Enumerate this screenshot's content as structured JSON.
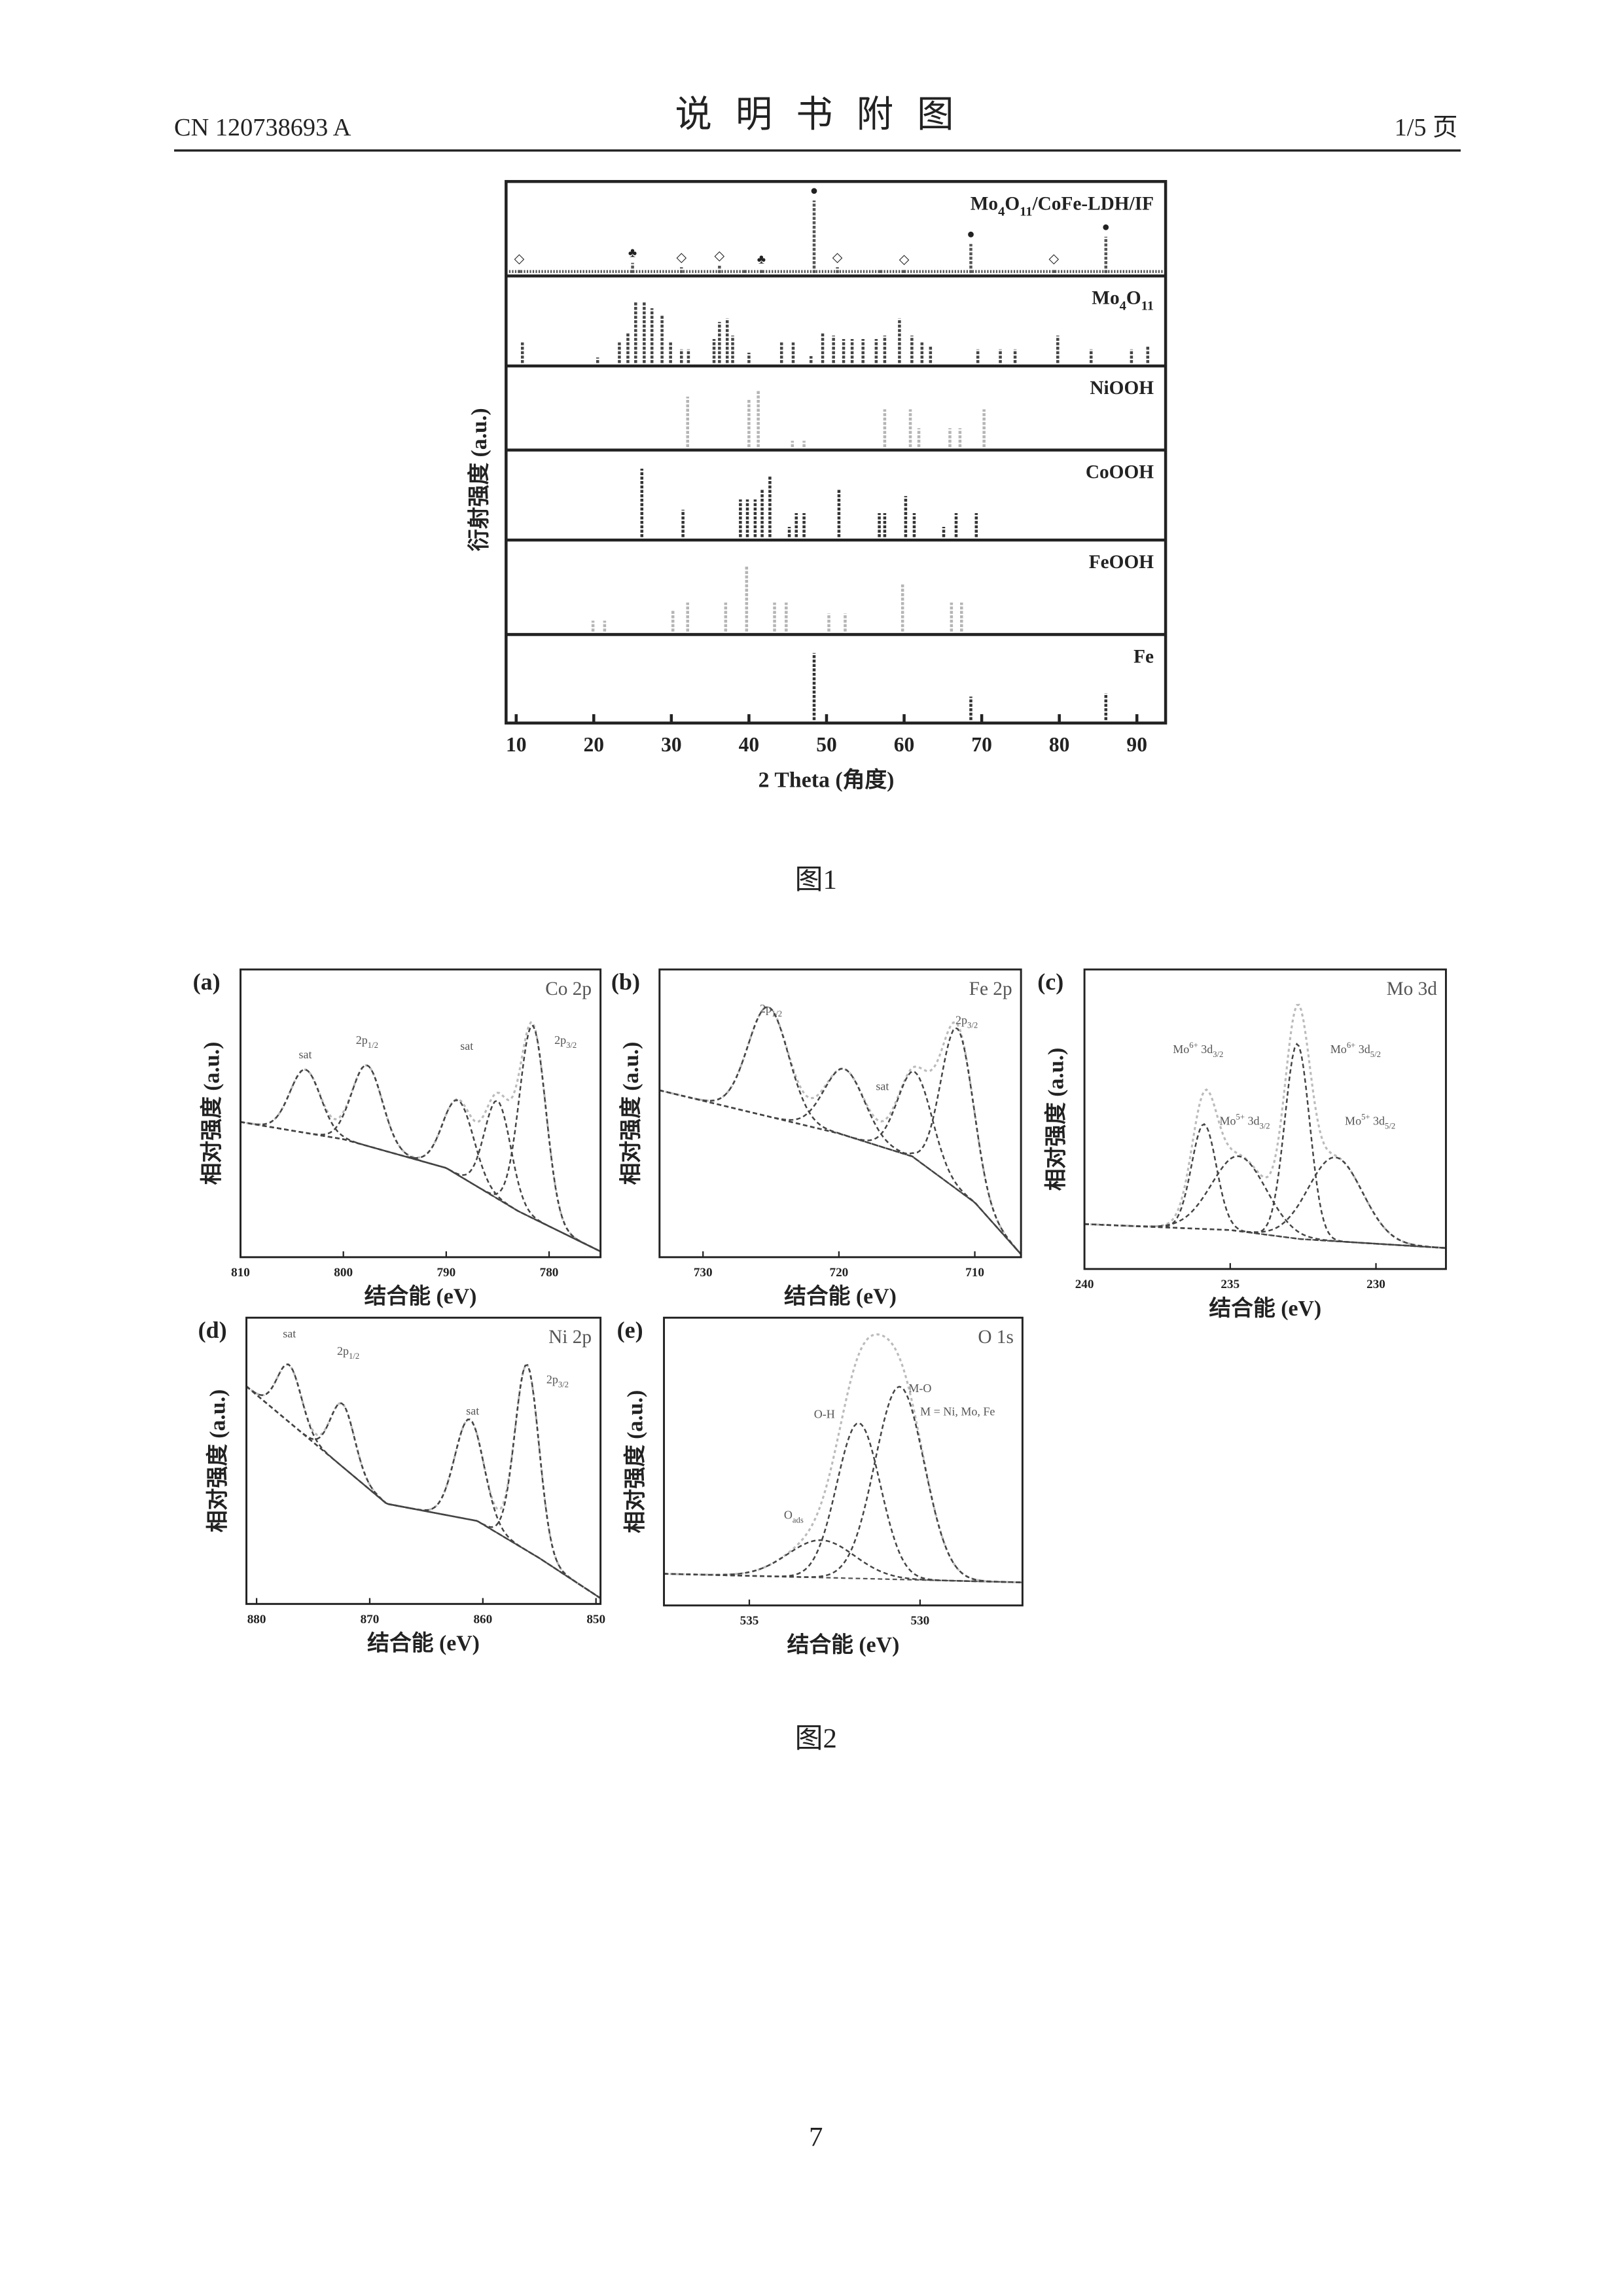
{
  "header": {
    "doc_number": "CN 120738693 A",
    "title": "说明书附图",
    "page_of": "1/5 页"
  },
  "page_number": "7",
  "figures": [
    {
      "caption": "图1",
      "chart_data": {
        "type": "stick",
        "x_label": "2 Theta (角度)",
        "y_label": "衍射强度 (a.u.)",
        "xlim": [
          8.7,
          93.7
        ],
        "xticks": [
          10,
          20,
          30,
          40,
          50,
          60,
          70,
          80,
          90
        ],
        "ylim": [
          0,
          110
        ],
        "series": [
          {
            "name": "Mo4O11/CoFe-LDH/IF",
            "color": "#555555",
            "x": [
              10.4,
              25.0,
              31.3,
              36.2,
              39.5,
              41.6,
              48.4,
              51.4,
              57.0,
              60.0,
              68.6,
              79.3,
              86.0
            ],
            "values": [
              6,
              14,
              8,
              10,
              5,
              5,
              100,
              8,
              4,
              5,
              40,
              6,
              50
            ],
            "markers": [
              {
                "x": 10.4,
                "symbol": "◇"
              },
              {
                "x": 25.0,
                "symbol": "♣"
              },
              {
                "x": 31.3,
                "symbol": "◇"
              },
              {
                "x": 36.2,
                "symbol": "◇"
              },
              {
                "x": 41.6,
                "symbol": "♣"
              },
              {
                "x": 48.4,
                "symbol": "●"
              },
              {
                "x": 51.4,
                "symbol": "◇"
              },
              {
                "x": 60.0,
                "symbol": "◇"
              },
              {
                "x": 68.6,
                "symbol": "●"
              },
              {
                "x": 79.3,
                "symbol": "◇"
              },
              {
                "x": 86.0,
                "symbol": "●"
              }
            ]
          },
          {
            "name": "Mo4O11",
            "color": "#444444",
            "x": [
              10.8,
              20.5,
              23.3,
              24.4,
              25.4,
              26.5,
              27.5,
              28.8,
              29.9,
              31.3,
              32.2,
              35.5,
              36.2,
              37.2,
              37.9,
              40.0,
              44.2,
              45.7,
              48.0,
              49.5,
              50.9,
              52.2,
              53.3,
              54.7,
              56.4,
              57.5,
              59.4,
              61.0,
              62.3,
              63.4,
              69.5,
              72.4,
              74.3,
              79.8,
              84.1,
              89.3,
              91.4
            ],
            "values": [
              30,
              8,
              30,
              45,
              90,
              90,
              80,
              70,
              30,
              20,
              20,
              35,
              60,
              65,
              40,
              15,
              30,
              30,
              10,
              45,
              40,
              35,
              35,
              35,
              35,
              40,
              65,
              40,
              30,
              25,
              20,
              20,
              20,
              40,
              20,
              20,
              25
            ]
          },
          {
            "name": "NiOOH",
            "color": "#b5b5b5",
            "x": [
              32.1,
              40.0,
              41.2,
              45.6,
              47.1,
              57.5,
              60.8,
              61.9,
              65.9,
              67.2,
              70.3
            ],
            "values": [
              80,
              75,
              90,
              10,
              10,
              60,
              60,
              30,
              30,
              30,
              60
            ]
          },
          {
            "name": "CoOOH",
            "color": "#333333",
            "x": [
              26.2,
              31.5,
              38.9,
              39.8,
              40.8,
              41.7,
              42.7,
              45.2,
              46.1,
              47.1,
              51.6,
              56.8,
              57.5,
              60.2,
              61.3,
              65.1,
              66.7,
              69.3
            ],
            "values": [
              100,
              40,
              55,
              55,
              55,
              70,
              90,
              15,
              35,
              35,
              70,
              35,
              35,
              60,
              35,
              15,
              35,
              35
            ]
          },
          {
            "name": "FeOOH",
            "color": "#b5b5b5",
            "x": [
              19.9,
              21.4,
              30.2,
              32.1,
              37.0,
              39.7,
              43.3,
              44.8,
              50.3,
              52.4,
              59.8,
              66.1,
              67.4
            ],
            "values": [
              15,
              15,
              30,
              40,
              40,
              90,
              40,
              40,
              25,
              25,
              65,
              40,
              40
            ]
          },
          {
            "name": "Fe",
            "color": "#333333",
            "x": [
              48.4,
              68.6,
              86.0
            ],
            "values": [
              100,
              35,
              40
            ]
          }
        ]
      }
    },
    {
      "caption": "图2",
      "chart_data": [
        {
          "type": "xps",
          "panel": "(a)",
          "title": "Co 2p",
          "x_label": "结合能 (eV)",
          "y_label": "相对强度 (a.u.)",
          "xlim": [
            810,
            775
          ],
          "xticks": [
            810,
            800,
            790,
            780
          ],
          "ylim": [
            0,
            100
          ],
          "background": {
            "x": [
              810,
              800,
              790,
              783,
              775
            ],
            "values": [
              47,
              41,
              31,
              16,
              2
            ]
          },
          "components": [
            {
              "center": 803.7,
              "height": 22,
              "fwhm": 3.5
            },
            {
              "center": 797.7,
              "height": 28,
              "fwhm": 3.5
            },
            {
              "center": 788.8,
              "height": 26,
              "fwhm": 3.5
            },
            {
              "center": 785.0,
              "height": 34,
              "fwhm": 3
            },
            {
              "center": 781.6,
              "height": 67,
              "fwhm": 3
            }
          ],
          "annotations": [
            {
              "text": "sat",
              "x": 803.7,
              "y": 70
            },
            {
              "text": "2p1/2",
              "x": 797.7,
              "y": 75
            },
            {
              "text": "sat",
              "x": 788.0,
              "y": 73
            },
            {
              "text": "2p3/2",
              "x": 778.4,
              "y": 75
            }
          ]
        },
        {
          "type": "xps",
          "panel": "(b)",
          "title": "Fe 2p",
          "x_label": "结合能 (eV)",
          "y_label": "相对强度 (a.u.)",
          "xlim": [
            733.2,
            706.6
          ],
          "xticks": [
            730,
            720,
            710
          ],
          "ylim": [
            0,
            100
          ],
          "background": {
            "x": [
              733.2,
              720,
              714.6,
              710,
              706.6
            ],
            "values": [
              58,
              43,
              35,
              19,
              1
            ]
          },
          "components": [
            {
              "center": 725.2,
              "height": 38,
              "fwhm": 3.5
            },
            {
              "center": 719.6,
              "height": 23,
              "fwhm": 3.5
            },
            {
              "center": 714.4,
              "height": 30,
              "fwhm": 3
            },
            {
              "center": 711.3,
              "height": 56,
              "fwhm": 2.8
            }
          ],
          "annotations": [
            {
              "text": "2p1/2",
              "x": 725.0,
              "y": 86
            },
            {
              "text": "sat",
              "x": 716.8,
              "y": 59
            },
            {
              "text": "2p3/2",
              "x": 710.6,
              "y": 82
            }
          ]
        },
        {
          "type": "xps",
          "panel": "(c)",
          "title": "Mo 3d",
          "x_label": "结合能 (eV)",
          "y_label": "相对强度 (a.u.)",
          "xlim": [
            240,
            227.6
          ],
          "xticks": [
            240,
            235,
            230
          ],
          "ylim": [
            0,
            100
          ],
          "background": {
            "x": [
              240,
              235,
              232.6,
              227.6
            ],
            "values": [
              15,
              13,
              10,
              7
            ]
          },
          "components": [
            {
              "center": 235.9,
              "height": 35,
              "fwhm": 1.0
            },
            {
              "center": 234.7,
              "height": 25,
              "fwhm": 2.2
            },
            {
              "center": 232.7,
              "height": 65,
              "fwhm": 1.0
            },
            {
              "center": 231.4,
              "height": 28,
              "fwhm": 2.2
            }
          ],
          "annotations": [
            {
              "text": "Mo6+ 3d3/2",
              "x": 236.1,
              "y": 73
            },
            {
              "text": "Mo5+ 3d3/2",
              "x": 234.5,
              "y": 49
            },
            {
              "text": "Mo6+ 3d5/2",
              "x": 230.7,
              "y": 73
            },
            {
              "text": "Mo5+ 3d5/2",
              "x": 230.2,
              "y": 49
            }
          ]
        },
        {
          "type": "xps",
          "panel": "(d)",
          "title": "Ni 2p",
          "x_label": "结合能 (eV)",
          "y_label": "相对强度 (a.u.)",
          "xlim": [
            880.9,
            849.6
          ],
          "xticks": [
            880,
            870,
            860,
            850
          ],
          "ylim": [
            0,
            100
          ],
          "background": {
            "x": [
              880.9,
              868.5,
              860.5,
              855,
              849.6
            ],
            "values": [
              76,
              35,
              29,
              16,
              2
            ]
          },
          "components": [
            {
              "center": 877.1,
              "height": 20,
              "fwhm": 2.5
            },
            {
              "center": 872.4,
              "height": 22,
              "fwhm": 2.5
            },
            {
              "center": 861.2,
              "height": 35,
              "fwhm": 3
            },
            {
              "center": 856.1,
              "height": 65,
              "fwhm": 2.5
            }
          ],
          "annotations": [
            {
              "text": "sat",
              "x": 877.1,
              "y": 94
            },
            {
              "text": "2p1/2",
              "x": 871.9,
              "y": 88
            },
            {
              "text": "sat",
              "x": 860.9,
              "y": 67
            },
            {
              "text": "2p3/2",
              "x": 853.4,
              "y": 78
            }
          ]
        },
        {
          "type": "xps",
          "panel": "(e)",
          "title": "O 1s",
          "x_label": "结合能 (eV)",
          "y_label": "相对强度 (a.u.)",
          "xlim": [
            537.5,
            527.0
          ],
          "xticks": [
            535,
            530
          ],
          "ylim": [
            0,
            100
          ],
          "background": {
            "x": [
              537.5,
              527.0
            ],
            "values": [
              11,
              8
            ]
          },
          "components": [
            {
              "center": 532.9,
              "height": 13,
              "fwhm": 2.3
            },
            {
              "center": 531.8,
              "height": 54,
              "fwhm": 1.5
            },
            {
              "center": 530.6,
              "height": 67,
              "fwhm": 1.7
            }
          ],
          "annotations": [
            {
              "text": "Oads",
              "x": 533.7,
              "y": 31
            },
            {
              "text": "O-H",
              "x": 532.8,
              "y": 66
            },
            {
              "text": "M-O",
              "x": 530.0,
              "y": 75
            },
            {
              "text": "M = Ni, Mo, Fe",
              "x": 528.9,
              "y": 67
            }
          ]
        }
      ]
    }
  ]
}
